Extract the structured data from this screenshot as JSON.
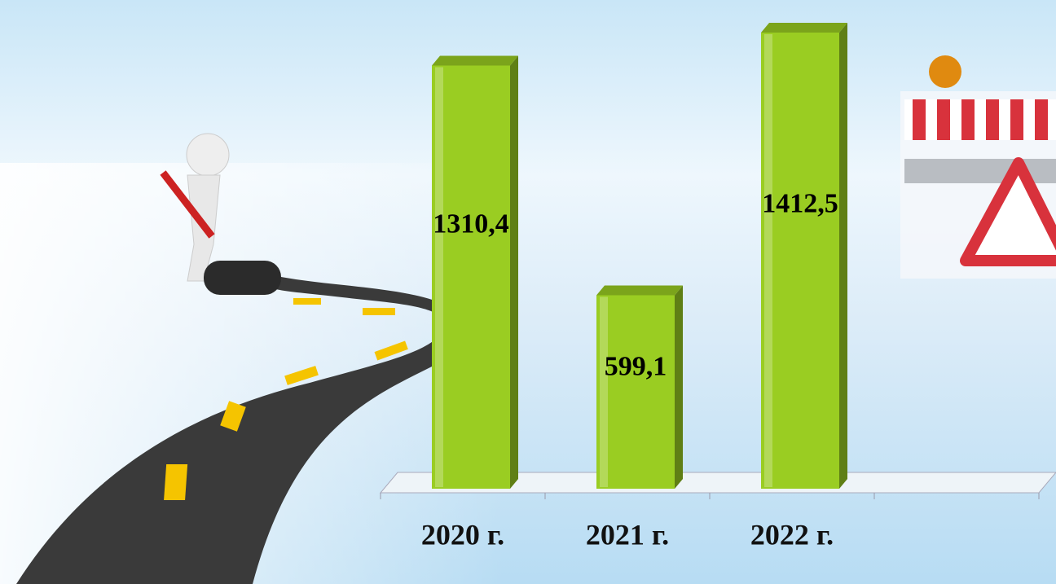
{
  "chart_data": {
    "type": "bar3d",
    "categories": [
      "2020 г.",
      "2021 г.",
      "2022 г.",
      null
    ],
    "values": [
      1310.4,
      599.1,
      1412.5,
      null
    ],
    "value_labels": [
      "1310,4",
      "599,1",
      "1412,5",
      null
    ],
    "color": "#9acd22"
  }
}
